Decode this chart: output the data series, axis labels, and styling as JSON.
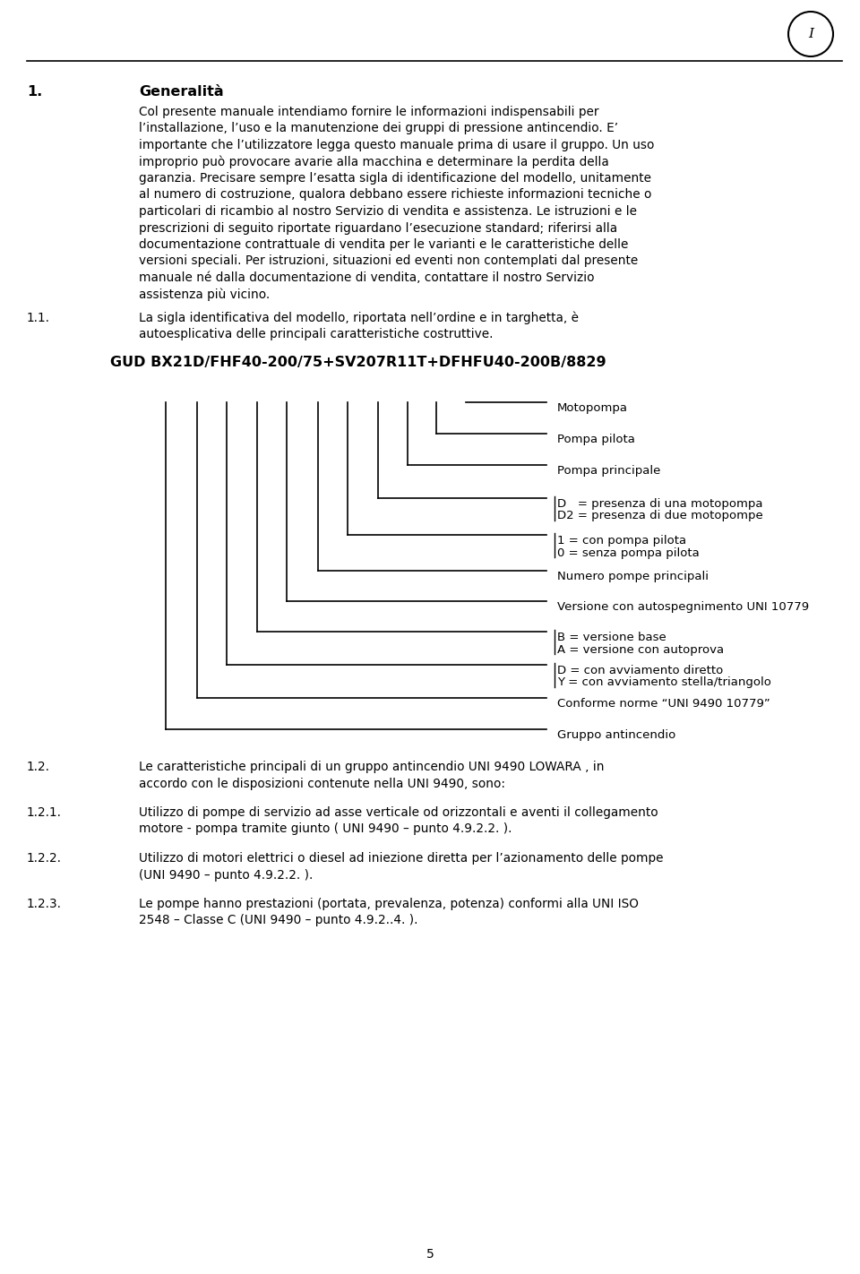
{
  "bg_color": "#ffffff",
  "text_color": "#000000",
  "page_number": "5",
  "circle_label": "I",
  "section_number": "1.",
  "section_title": "Generalità",
  "para1_lines": [
    "Col presente manuale intendiamo fornire le informazioni indispensabili per",
    "l’installazione, l’uso e la manutenzione dei gruppi di pressione antincendio. E’",
    "importante che l’utilizzatore legga questo manuale prima di usare il gruppo. Un uso",
    "improprio può provocare avarie alla macchina e determinare la perdita della",
    "garanzia. Precisare sempre l’esatta sigla di identificazione del modello, unitamente",
    "al numero di costruzione, qualora debbano essere richieste informazioni tecniche o",
    "particolari di ricambio al nostro Servizio di vendita e assistenza. Le istruzioni e le",
    "prescrizioni di seguito riportate riguardano l’esecuzione standard; riferirsi alla",
    "documentazione contrattuale di vendita per le varianti e le caratteristiche delle",
    "versioni speciali. Per istruzioni, situazioni ed eventi non contemplati dal presente",
    "manuale né dalla documentazione di vendita, contattare il nostro Servizio",
    "assistenza più vicino."
  ],
  "subsection_number": "1.1.",
  "subsection_lines": [
    "La sigla identificativa del modello, riportata nell’ordine e in targhetta, è",
    "autoesplicativa delle principali caratteristiche costruttive."
  ],
  "diagram_title": "GUD BX21D/FHF40-200/75+SV207R11T+DFHFU40-200B/8829",
  "sections_bottom": [
    {
      "num": "1.2.",
      "lines": [
        "Le caratteristiche principali di un gruppo antincendio UNI 9490 LOWARA , in",
        "accordo con le disposizioni contenute nella UNI 9490, sono:"
      ]
    },
    {
      "num": "1.2.1.",
      "lines": [
        "Utilizzo di pompe di servizio ad asse verticale od orizzontali e aventi il collegamento",
        "motore - pompa tramite giunto ( UNI 9490 – punto 4.9.2.2. )."
      ]
    },
    {
      "num": "1.2.2.",
      "lines": [
        "Utilizzo di motori elettrici o diesel ad iniezione diretta per l’azionamento delle pompe",
        "(UNI 9490 – punto 4.9.2.2. )."
      ]
    },
    {
      "num": "1.2.3.",
      "lines": [
        "Le pompe hanno prestazioni (portata, prevalenza, potenza) conformi alla UNI ISO",
        "2548 – Classe C (UNI 9490 – punto 4.9.2..4. )."
      ]
    }
  ]
}
